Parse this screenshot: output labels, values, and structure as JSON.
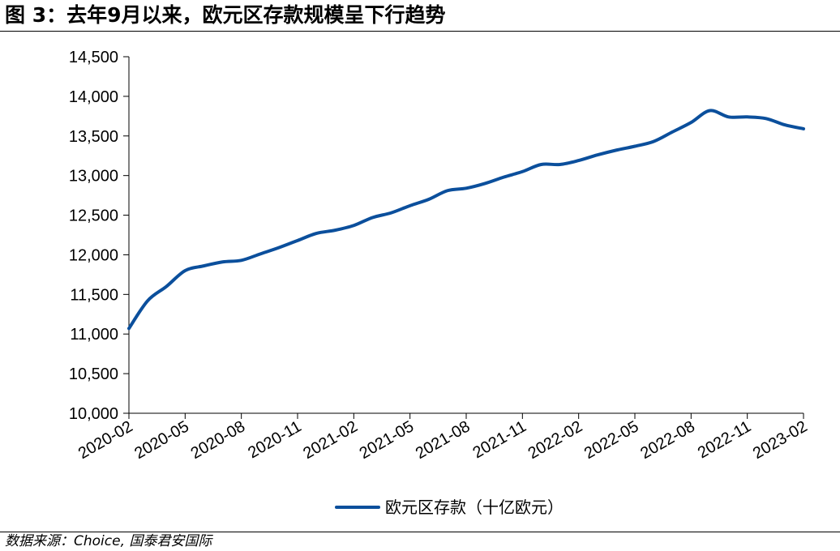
{
  "figure": {
    "title": "图 3：去年9月以来，欧元区存款规模呈下行趋势",
    "source": "数据来源：Choice, 国泰君安国际"
  },
  "colors": {
    "series_line": "#0B4F9C",
    "axis": "#000000"
  },
  "chart_data": {
    "type": "line",
    "title": "",
    "xlabel": "",
    "ylabel": "",
    "ylim": [
      10000,
      14500
    ],
    "yticks": [
      10000,
      10500,
      11000,
      11500,
      12000,
      12500,
      13000,
      13500,
      14000,
      14500
    ],
    "ytick_labels": [
      "10,000",
      "10,500",
      "11,000",
      "11,500",
      "12,000",
      "12,500",
      "13,000",
      "13,500",
      "14,000",
      "14,500"
    ],
    "xtick_labels": [
      "2020-02",
      "2020-05",
      "2020-08",
      "2020-11",
      "2021-02",
      "2021-05",
      "2021-08",
      "2021-11",
      "2022-02",
      "2022-05",
      "2022-08",
      "2022-11",
      "2023-02"
    ],
    "grid": false,
    "legend_position": "bottom",
    "x": [
      "2020-02",
      "2020-03",
      "2020-04",
      "2020-05",
      "2020-06",
      "2020-07",
      "2020-08",
      "2020-09",
      "2020-10",
      "2020-11",
      "2020-12",
      "2021-01",
      "2021-02",
      "2021-03",
      "2021-04",
      "2021-05",
      "2021-06",
      "2021-07",
      "2021-08",
      "2021-09",
      "2021-10",
      "2021-11",
      "2021-12",
      "2022-01",
      "2022-02",
      "2022-03",
      "2022-04",
      "2022-05",
      "2022-06",
      "2022-07",
      "2022-08",
      "2022-09",
      "2022-10",
      "2022-11",
      "2022-12",
      "2023-01",
      "2023-02"
    ],
    "series": [
      {
        "name": "欧元区存款（十亿欧元）",
        "values": [
          11070,
          11420,
          11600,
          11800,
          11860,
          11910,
          11930,
          12010,
          12090,
          12180,
          12270,
          12310,
          12370,
          12470,
          12530,
          12620,
          12700,
          12810,
          12840,
          12900,
          12980,
          13050,
          13140,
          13140,
          13190,
          13260,
          13320,
          13370,
          13430,
          13550,
          13670,
          13820,
          13740,
          13740,
          13720,
          13640,
          13590
        ]
      }
    ]
  }
}
